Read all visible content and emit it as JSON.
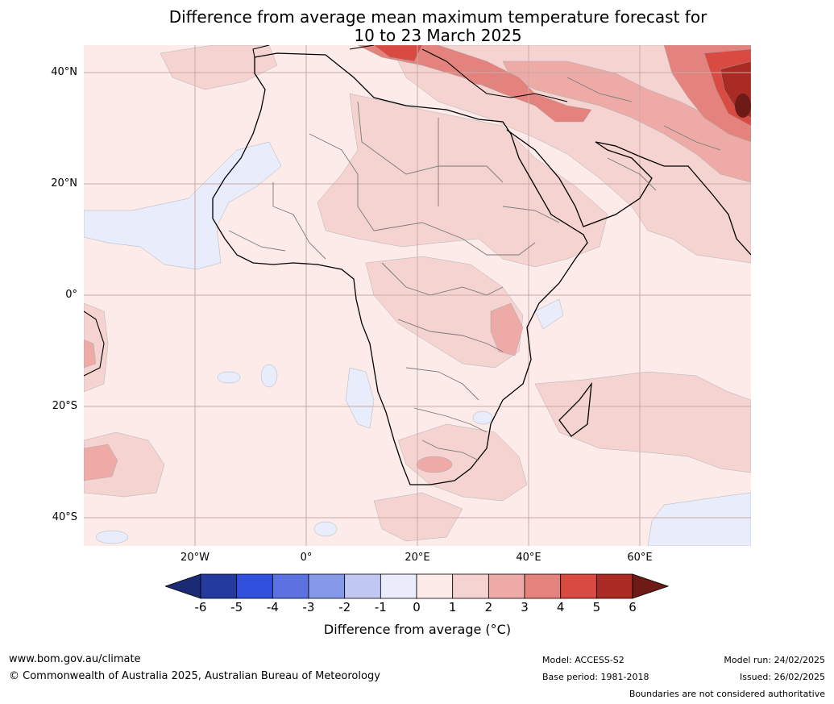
{
  "title": {
    "line1": "Difference from average mean maximum temperature forecast for",
    "line2": "10 to 23 March 2025"
  },
  "map": {
    "region": "Africa",
    "lat_labels": [
      "40°N",
      "20°N",
      "0°",
      "20°S",
      "40°S"
    ],
    "lon_labels": [
      "20°W",
      "0°",
      "20°E",
      "40°E",
      "60°E"
    ],
    "colors": {
      "ocean_base": "#fcebe9",
      "warm_1_2": "#f5d3d0",
      "warm_2_3": "#edaaa6",
      "warm_3_4": "#e4827d",
      "warm_4_5": "#d94a42",
      "warm_5_6": "#aa2a24",
      "warm_gt6": "#6e1a17",
      "cool_m1_0": "#e9ecfb"
    }
  },
  "colorbar": {
    "ticks": [
      "-6",
      "-5",
      "-4",
      "-3",
      "-2",
      "-1",
      "0",
      "1",
      "2",
      "3",
      "4",
      "5",
      "6"
    ],
    "colors": [
      "#243a9e",
      "#3150de",
      "#5b72e0",
      "#8699e8",
      "#c0c8f2",
      "#eaecfb",
      "#fcebe9",
      "#f5d3d0",
      "#edaaa6",
      "#e4827d",
      "#d94a42",
      "#aa2a24"
    ],
    "under_color": "#1a2a75",
    "over_color": "#6e1a17",
    "label": "Difference from average (°C)"
  },
  "footer": {
    "website": "www.bom.gov.au/climate",
    "copyright": "© Commonwealth of Australia 2025, Australian Bureau of Meteorology",
    "model": "Model: ACCESS-S2",
    "base_period": "Base period: 1981-2018",
    "model_run": "Model run: 24/02/2025",
    "issued": "Issued: 26/02/2025",
    "disclaimer": "Boundaries are not considered authoritative"
  }
}
